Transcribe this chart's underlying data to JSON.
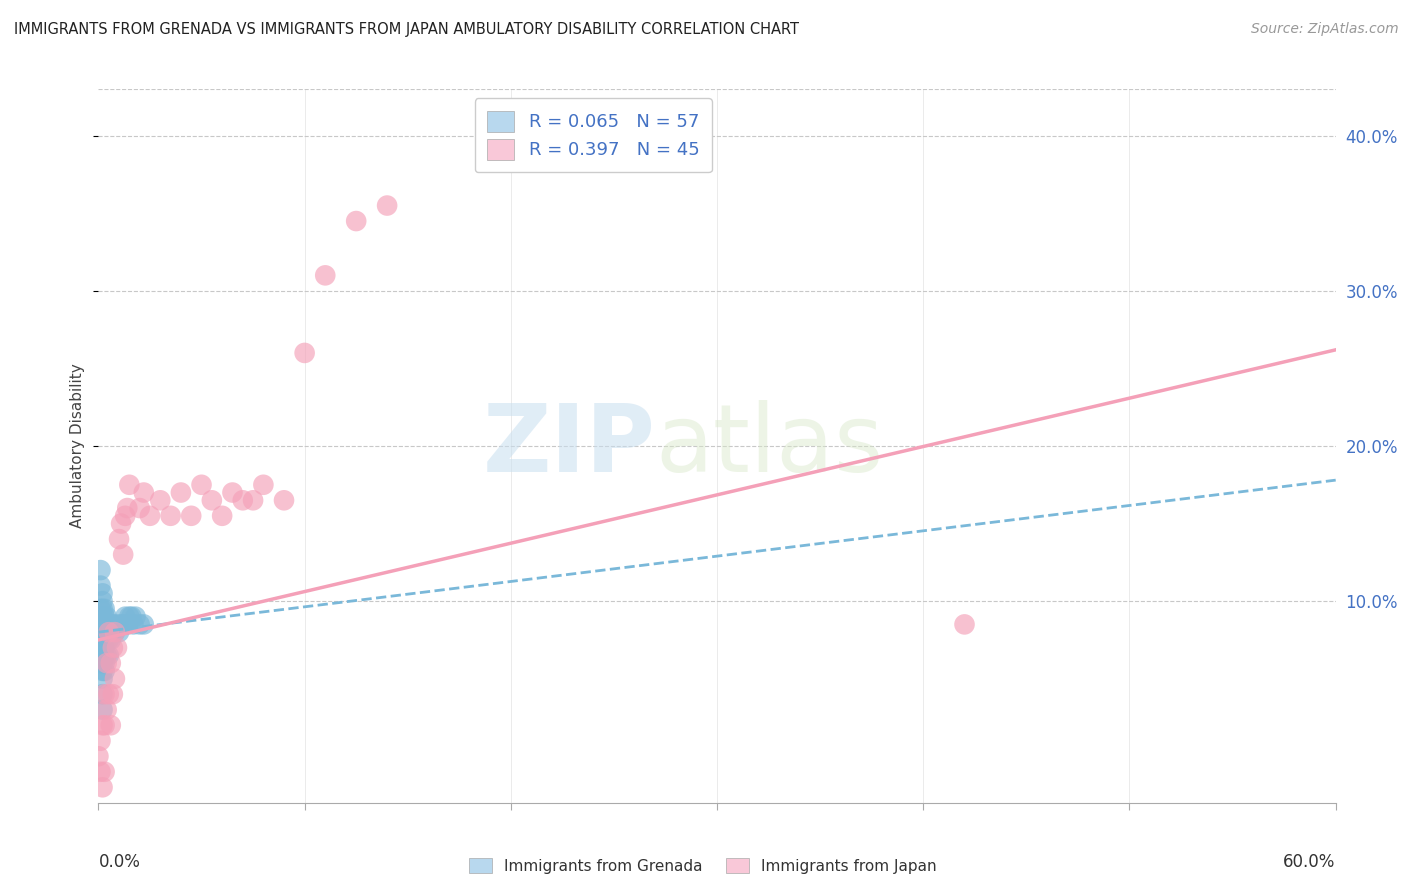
{
  "title": "IMMIGRANTS FROM GRENADA VS IMMIGRANTS FROM JAPAN AMBULATORY DISABILITY CORRELATION CHART",
  "source": "Source: ZipAtlas.com",
  "ylabel": "Ambulatory Disability",
  "xlim": [
    0,
    0.6
  ],
  "ylim": [
    -0.03,
    0.43
  ],
  "watermark_zip": "ZIP",
  "watermark_atlas": "atlas",
  "grenada_color": "#7ab8d9",
  "japan_color": "#f4a0b8",
  "grenada_fill": "#b8d8ee",
  "japan_fill": "#f9c8d8",
  "background_color": "#ffffff",
  "grid_color": "#c8c8c8",
  "title_fontsize": 10.5,
  "source_fontsize": 10,
  "grenada_scatter_x": [
    0.0,
    0.0,
    0.0,
    0.001,
    0.001,
    0.001,
    0.001,
    0.001,
    0.001,
    0.001,
    0.002,
    0.002,
    0.002,
    0.002,
    0.002,
    0.002,
    0.002,
    0.002,
    0.002,
    0.002,
    0.002,
    0.002,
    0.002,
    0.003,
    0.003,
    0.003,
    0.003,
    0.003,
    0.003,
    0.003,
    0.003,
    0.003,
    0.004,
    0.004,
    0.004,
    0.004,
    0.004,
    0.005,
    0.005,
    0.005,
    0.005,
    0.006,
    0.006,
    0.007,
    0.008,
    0.009,
    0.01,
    0.011,
    0.012,
    0.013,
    0.014,
    0.015,
    0.016,
    0.017,
    0.018,
    0.02,
    0.022
  ],
  "grenada_scatter_y": [
    0.085,
    0.07,
    0.06,
    0.12,
    0.11,
    0.095,
    0.09,
    0.08,
    0.075,
    0.065,
    0.105,
    0.1,
    0.095,
    0.09,
    0.085,
    0.08,
    0.075,
    0.065,
    0.06,
    0.055,
    0.05,
    0.04,
    0.03,
    0.095,
    0.09,
    0.085,
    0.08,
    0.075,
    0.07,
    0.065,
    0.06,
    0.055,
    0.09,
    0.085,
    0.08,
    0.075,
    0.065,
    0.085,
    0.08,
    0.075,
    0.065,
    0.085,
    0.075,
    0.085,
    0.08,
    0.085,
    0.08,
    0.085,
    0.085,
    0.09,
    0.085,
    0.09,
    0.09,
    0.085,
    0.09,
    0.085,
    0.085
  ],
  "japan_scatter_x": [
    0.0,
    0.001,
    0.001,
    0.002,
    0.002,
    0.003,
    0.003,
    0.003,
    0.004,
    0.004,
    0.005,
    0.005,
    0.006,
    0.006,
    0.007,
    0.007,
    0.008,
    0.008,
    0.009,
    0.01,
    0.011,
    0.012,
    0.013,
    0.014,
    0.015,
    0.02,
    0.022,
    0.025,
    0.03,
    0.035,
    0.04,
    0.045,
    0.05,
    0.055,
    0.06,
    0.065,
    0.07,
    0.075,
    0.08,
    0.09,
    0.1,
    0.11,
    0.125,
    0.14,
    0.42
  ],
  "japan_scatter_y": [
    0.0,
    0.01,
    -0.01,
    0.02,
    -0.02,
    0.04,
    0.02,
    -0.01,
    0.06,
    0.03,
    0.08,
    0.04,
    0.06,
    0.02,
    0.07,
    0.04,
    0.08,
    0.05,
    0.07,
    0.14,
    0.15,
    0.13,
    0.155,
    0.16,
    0.175,
    0.16,
    0.17,
    0.155,
    0.165,
    0.155,
    0.17,
    0.155,
    0.175,
    0.165,
    0.155,
    0.17,
    0.165,
    0.165,
    0.175,
    0.165,
    0.26,
    0.31,
    0.345,
    0.355,
    0.085
  ],
  "grenada_line_x": [
    0.0,
    0.6
  ],
  "grenada_line_y": [
    0.08,
    0.178
  ],
  "japan_line_x": [
    0.0,
    0.6
  ],
  "japan_line_y": [
    0.075,
    0.262
  ]
}
